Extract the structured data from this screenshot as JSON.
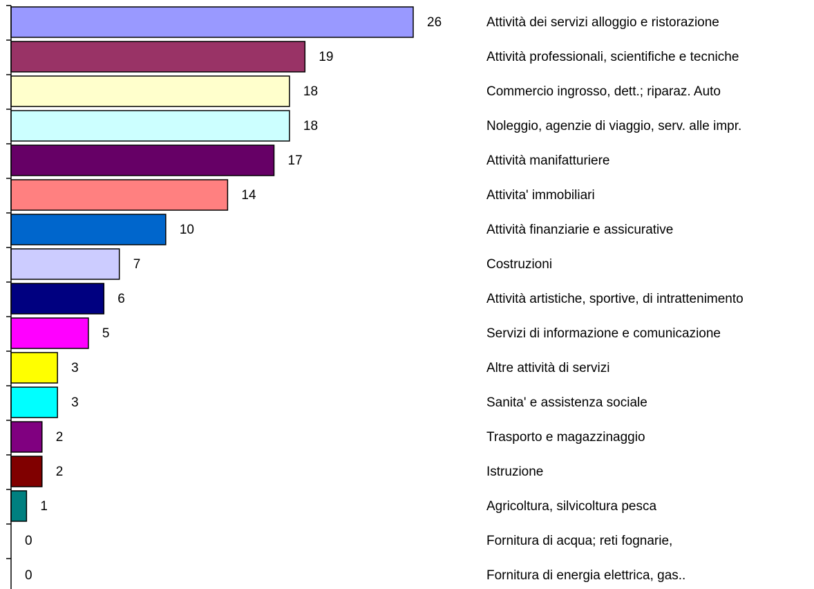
{
  "chart_data": {
    "type": "hbar",
    "categories": [
      "Attività dei servizi alloggio e ristorazione",
      "Attività professionali, scientifiche e tecniche",
      "Commercio ingrosso, dett.; riparaz. Auto",
      "Noleggio, agenzie di viaggio, serv. alle impr.",
      "Attività manifatturiere",
      "Attivita' immobiliari",
      "Attività finanziarie e assicurative",
      "Costruzioni",
      "Attività artistiche, sportive, di intrattenimento",
      "Servizi di informazione e comunicazione",
      "Altre attività di servizi",
      "Sanita' e assistenza sociale",
      "Trasporto e magazzinaggio",
      "Istruzione",
      "Agricoltura, silvicoltura pesca",
      "Fornitura di acqua; reti fognarie,",
      "Fornitura di energia elettrica, gas.."
    ],
    "values": [
      26,
      19,
      18,
      18,
      17,
      14,
      10,
      7,
      6,
      5,
      3,
      3,
      2,
      2,
      1,
      0,
      0
    ],
    "colors": [
      "#9999ff",
      "#993366",
      "#ffffcc",
      "#ccffff",
      "#660066",
      "#ff8080",
      "#0066cc",
      "#ccccff",
      "#000080",
      "#ff00ff",
      "#ffff00",
      "#00ffff",
      "#800080",
      "#800000",
      "#008080",
      "#0000ff",
      "#ccffff"
    ],
    "xlim": [
      0,
      26
    ]
  }
}
